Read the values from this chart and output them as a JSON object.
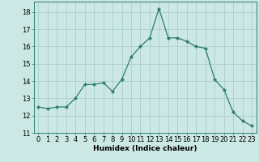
{
  "x": [
    0,
    1,
    2,
    3,
    4,
    5,
    6,
    7,
    8,
    9,
    10,
    11,
    12,
    13,
    14,
    15,
    16,
    17,
    18,
    19,
    20,
    21,
    22,
    23
  ],
  "y": [
    12.5,
    12.4,
    12.5,
    12.5,
    13.0,
    13.8,
    13.8,
    13.9,
    13.4,
    14.1,
    15.4,
    16.0,
    16.5,
    18.2,
    16.5,
    16.5,
    16.3,
    16.0,
    15.9,
    14.1,
    13.5,
    12.2,
    11.7,
    11.4
  ],
  "xlabel": "Humidex (Indice chaleur)",
  "xlim": [
    -0.5,
    23.5
  ],
  "ylim": [
    11,
    18.6
  ],
  "yticks": [
    11,
    12,
    13,
    14,
    15,
    16,
    17,
    18
  ],
  "xticks": [
    0,
    1,
    2,
    3,
    4,
    5,
    6,
    7,
    8,
    9,
    10,
    11,
    12,
    13,
    14,
    15,
    16,
    17,
    18,
    19,
    20,
    21,
    22,
    23
  ],
  "line_color": "#2d7d6d",
  "marker_color": "#2d7d6d",
  "bg_color": "#cce8e4",
  "grid_color": "#aacfcb",
  "xlabel_fontsize": 6.5,
  "tick_fontsize": 6.0
}
